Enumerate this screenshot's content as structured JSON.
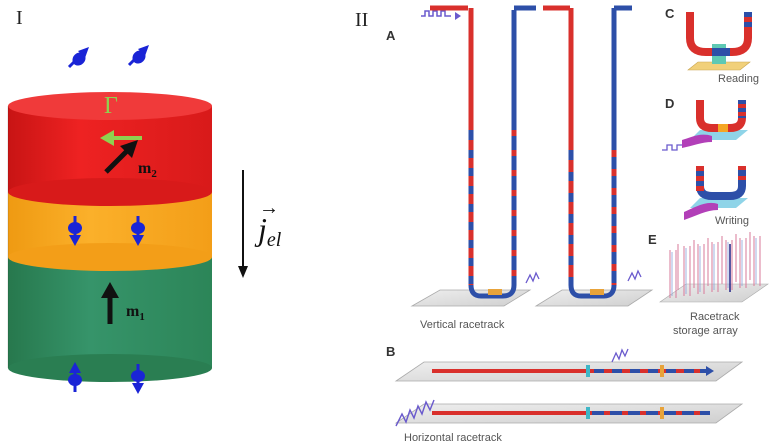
{
  "panel_I": {
    "roman_label": "I",
    "torque_symbol": "Γ",
    "m2": {
      "base": "m",
      "sub": "2"
    },
    "m1": {
      "base": "m",
      "sub": "1"
    },
    "current": {
      "vec": "→",
      "base": "j",
      "sub": "el"
    },
    "colors": {
      "top_layer": "#e61919",
      "middle_layer": "#f7a21b",
      "bottom_layer": "#2e8a5a",
      "spin_arrow": "#1a24d6",
      "torque_arrow": "#8fd14f"
    }
  },
  "panel_II": {
    "roman_label": "II",
    "sub_panels": {
      "A": {
        "letter": "A",
        "caption": "Vertical racetrack"
      },
      "B": {
        "letter": "B",
        "caption": "Horizontal racetrack"
      },
      "C": {
        "letter": "C",
        "caption": "Reading"
      },
      "D": {
        "letter": "D",
        "caption": "Writing"
      },
      "E": {
        "letter": "E",
        "caption_line1": "Racetrack",
        "caption_line2": "storage array"
      }
    },
    "colors": {
      "red_domain": "#d9302c",
      "blue_domain": "#2d4fa8",
      "plate": "#dcdcdc"
    }
  }
}
